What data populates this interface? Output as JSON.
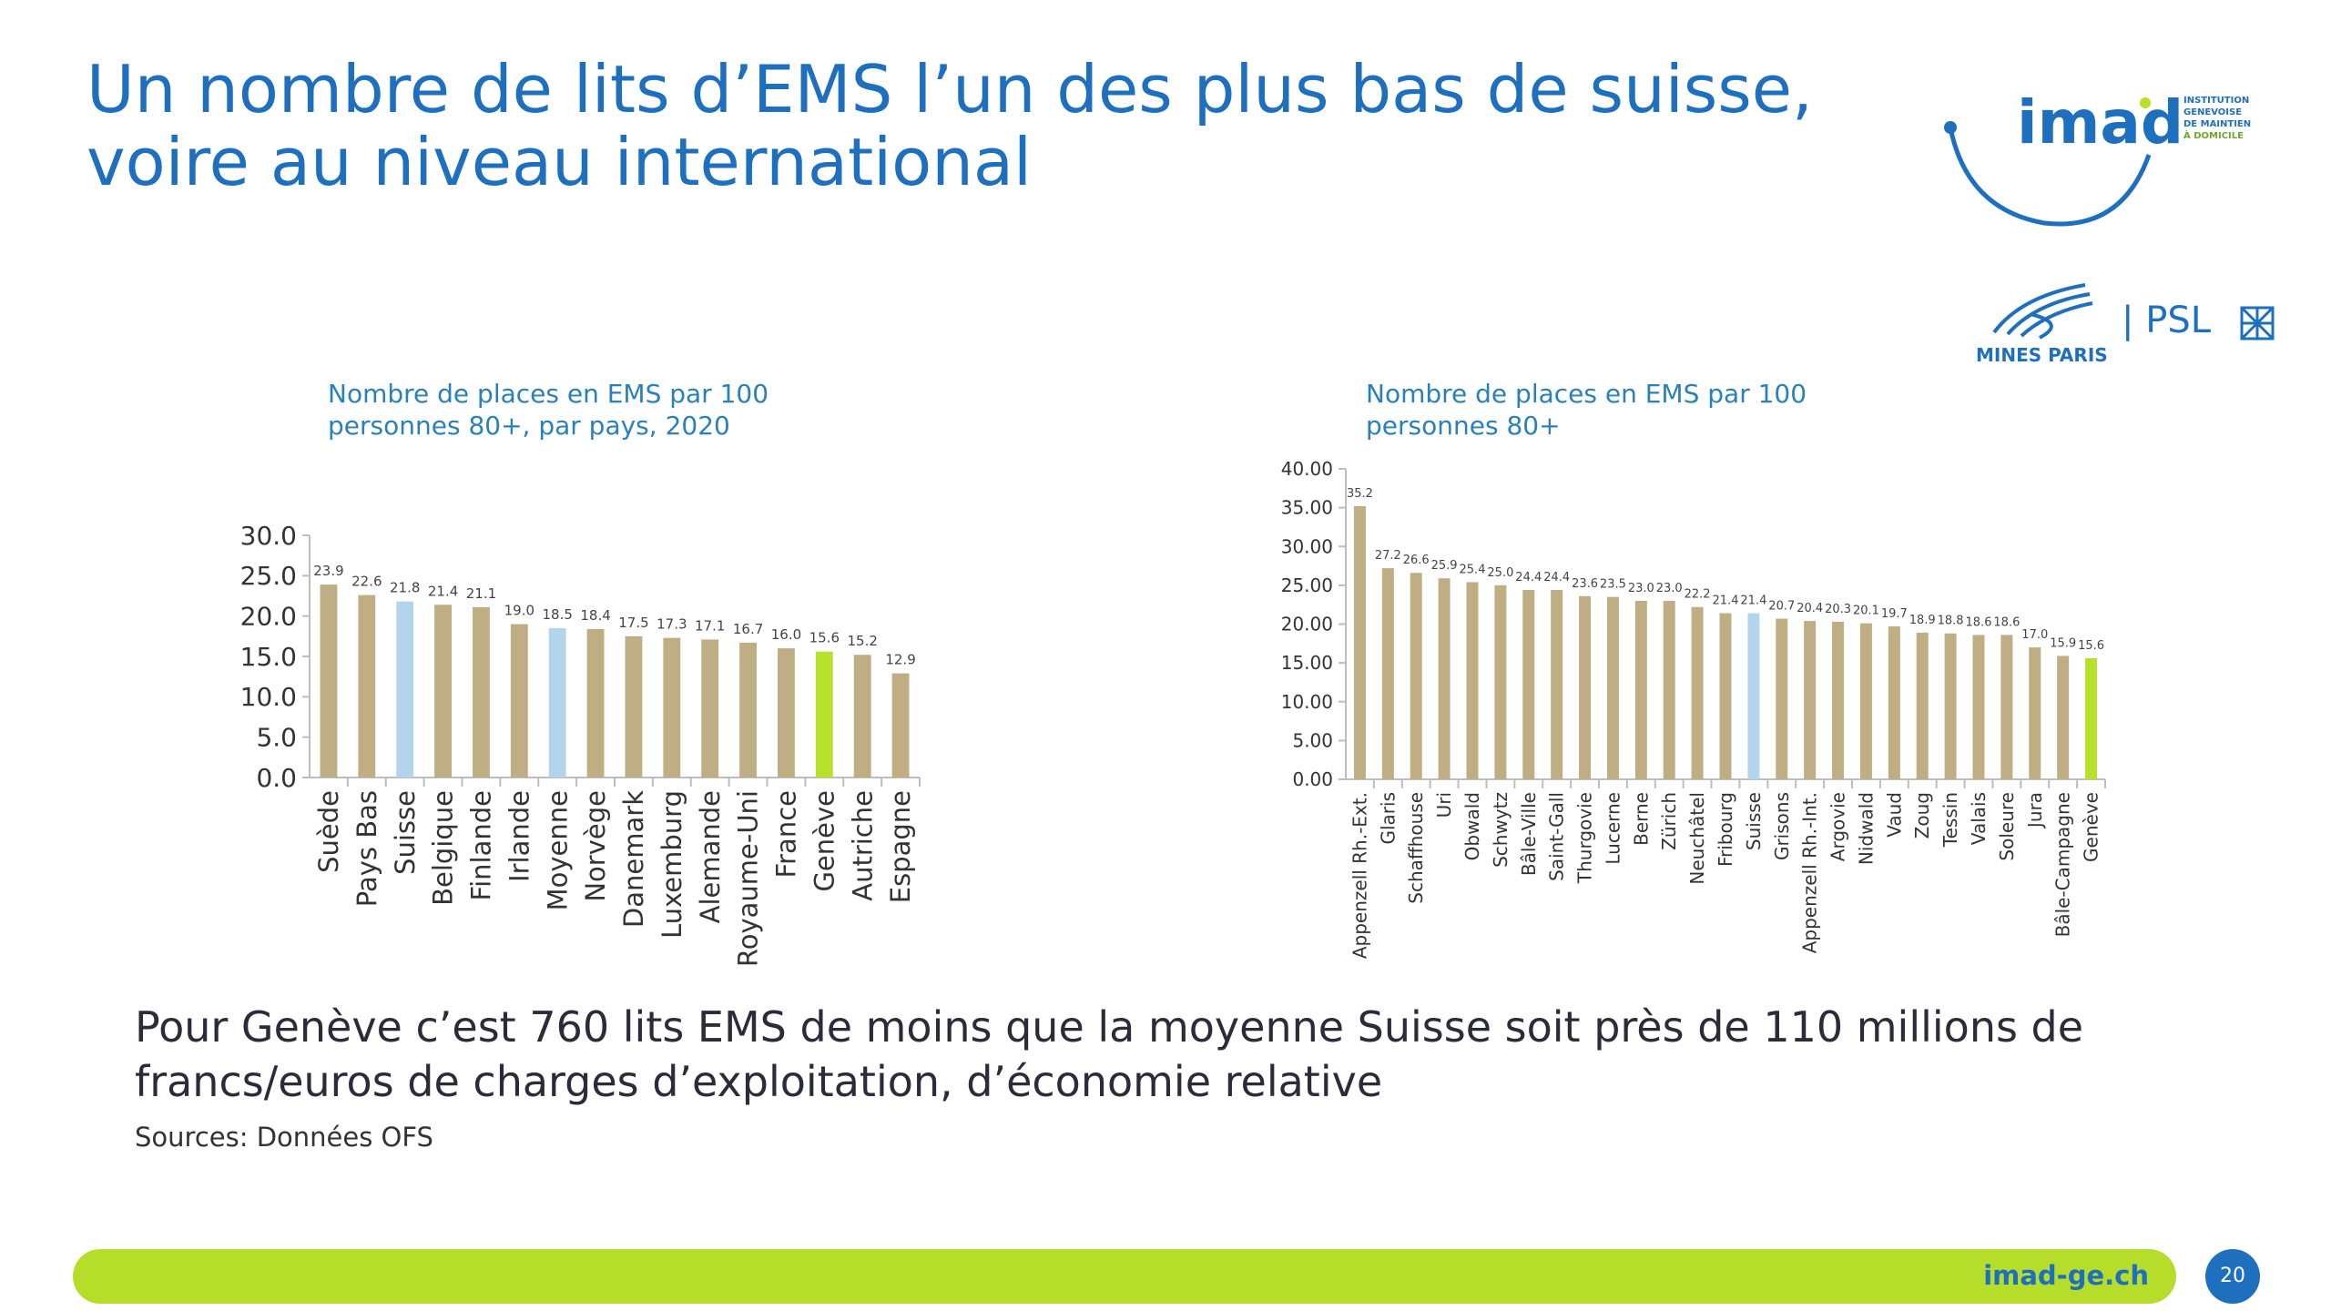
{
  "title_line1": "Un nombre de lits d’EMS l’un des plus bas de suisse,",
  "title_line2": "voire au niveau international",
  "logos": {
    "imad_word": "imad",
    "imad_sub": [
      "INSTITUTION",
      "GENEVOISE",
      "DE MAINTIEN",
      "À DOMICILE"
    ],
    "mines": "MINES PARIS",
    "psl": "| PSL"
  },
  "colors": {
    "accent_blue": "#1f6fbf",
    "bar_default": "#bfad84",
    "bar_highlight_blue": "#b3d5ec",
    "bar_highlight_green": "#b7e12a",
    "footer_green": "#b7dd2b"
  },
  "conclusion": "Pour Genève c’est 760 lits EMS de moins que la moyenne Suisse soit près de 110 millions de francs/euros de charges d’exploitation, d’économie relative",
  "sources": "Sources: Données OFS",
  "footer": {
    "url": "imad-ge.ch",
    "page": "20"
  },
  "chart_data": [
    {
      "type": "bar",
      "title_line1": "Nombre de places en EMS par 100",
      "title_line2": "personnes 80+, par pays, 2020",
      "categories": [
        "Suède",
        "Pays Bas",
        "Suisse",
        "Belgique",
        "Finlande",
        "Irlande",
        "Moyenne",
        "Norvège",
        "Danemark",
        "Luxemburg",
        "Alemande",
        "Royaume-Uni",
        "France",
        "Genève",
        "Autriche",
        "Espagne"
      ],
      "values": [
        23.9,
        22.6,
        21.8,
        21.4,
        21.1,
        19.0,
        18.5,
        18.4,
        17.5,
        17.3,
        17.1,
        16.7,
        16.0,
        15.6,
        15.2,
        12.9
      ],
      "value_labels": [
        "23.9",
        "22.6",
        "21.8",
        "21.4",
        "21.1",
        "19.0",
        "18.5",
        "18.4",
        "17.5",
        "17.3",
        "17.1",
        "16.7",
        "16.0",
        "15.6",
        "15.2",
        "12.9"
      ],
      "highlight": {
        "Suisse": "blue",
        "Moyenne": "blue",
        "Genève": "green"
      },
      "yticks": [
        "0.0",
        "5.0",
        "10.0",
        "15.0",
        "20.0",
        "25.0",
        "30.0"
      ],
      "ylim": [
        0,
        30
      ],
      "xlabel": "",
      "ylabel": "",
      "legend": "none",
      "grid": false
    },
    {
      "type": "bar",
      "title_line1": "Nombre de places en EMS par 100",
      "title_line2": "personnes 80+",
      "categories": [
        "Appenzell Rh.-Ext.",
        "Glaris",
        "Schaffhouse",
        "Uri",
        "Obwald",
        "Schwytz",
        "Bâle-Ville",
        "Saint-Gall",
        "Thurgovie",
        "Lucerne",
        "Berne",
        "Zürich",
        "Neuchâtel",
        "Fribourg",
        "Suisse",
        "Grisons",
        "Appenzell Rh.-Int.",
        "Argovie",
        "Nidwald",
        "Vaud",
        "Zoug",
        "Tessin",
        "Valais",
        "Soleure",
        "Jura",
        "Bâle-Campagne",
        "Genève"
      ],
      "values": [
        35.2,
        27.2,
        26.6,
        25.9,
        25.4,
        25.0,
        24.4,
        24.4,
        23.6,
        23.5,
        23.0,
        23.0,
        22.2,
        21.4,
        21.4,
        20.7,
        20.4,
        20.3,
        20.1,
        19.7,
        18.9,
        18.8,
        18.6,
        18.6,
        17.0,
        15.9,
        15.6
      ],
      "value_labels": [
        "35.2",
        "27.2",
        "26.6",
        "25.9",
        "25.4",
        "25.0",
        "24.4",
        "24.4",
        "23.6",
        "23.5",
        "23.0",
        "23.0",
        "22.2",
        "21.4",
        "21.4",
        "20.7",
        "20.4",
        "20.3",
        "20.1",
        "19.7",
        "18.9",
        "18.8",
        "18.6",
        "18.6",
        "17.0",
        "15.9",
        "15.6"
      ],
      "highlight": {
        "Suisse": "blue",
        "Genève": "green"
      },
      "yticks": [
        "0.00",
        "5.00",
        "10.00",
        "15.00",
        "20.00",
        "25.00",
        "30.00",
        "35.00",
        "40.00"
      ],
      "ylim": [
        0,
        40
      ],
      "xlabel": "",
      "ylabel": "",
      "legend": "none",
      "grid": false
    }
  ]
}
